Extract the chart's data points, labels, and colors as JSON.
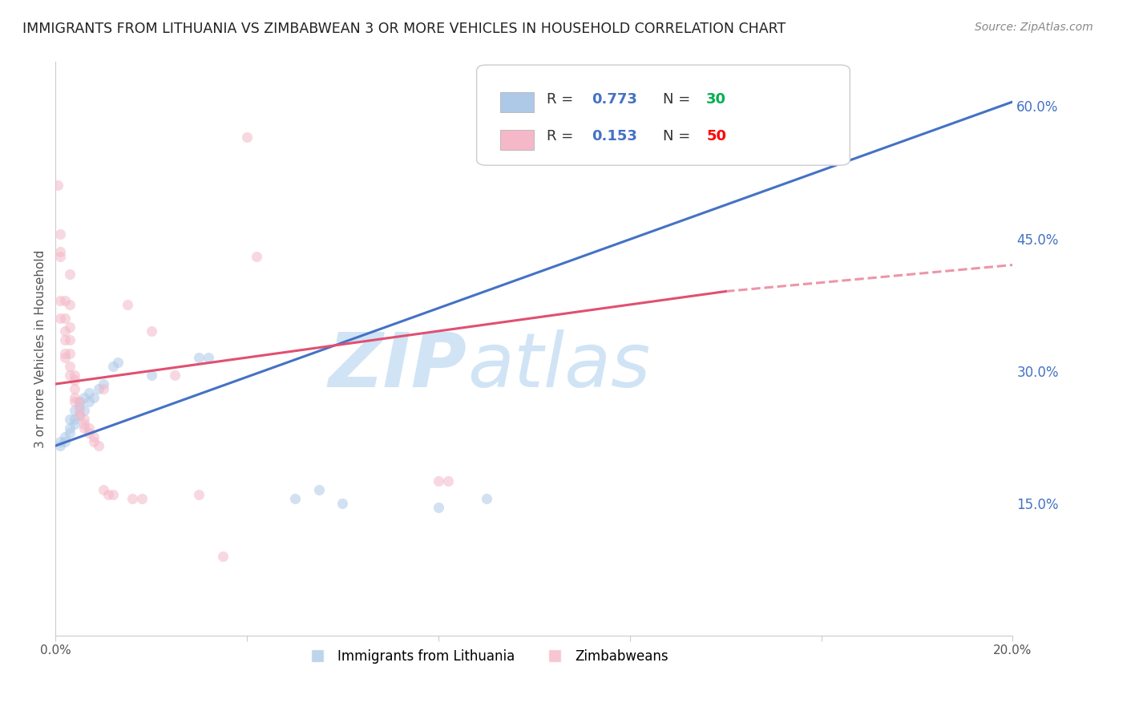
{
  "title": "IMMIGRANTS FROM LITHUANIA VS ZIMBABWEAN 3 OR MORE VEHICLES IN HOUSEHOLD CORRELATION CHART",
  "source": "Source: ZipAtlas.com",
  "ylabel": "3 or more Vehicles in Household",
  "legend_blue_label": "Immigrants from Lithuania",
  "legend_pink_label": "Zimbabweans",
  "legend_blue_R": "0.773",
  "legend_blue_N": "30",
  "legend_pink_R": "0.153",
  "legend_pink_N": "50",
  "xlim": [
    0.0,
    0.2
  ],
  "ylim": [
    0.0,
    0.65
  ],
  "yticks_right": [
    0.15,
    0.3,
    0.45,
    0.6
  ],
  "ytick_right_labels": [
    "15.0%",
    "30.0%",
    "45.0%",
    "60.0%"
  ],
  "xticks": [
    0.0,
    0.04,
    0.08,
    0.12,
    0.16,
    0.2
  ],
  "xtick_labels": [
    "0.0%",
    "",
    "",
    "",
    "",
    "20.0%"
  ],
  "background_color": "#ffffff",
  "blue_color": "#aec9e8",
  "pink_color": "#f4b8c8",
  "blue_line_color": "#4472c4",
  "pink_line_color": "#e05070",
  "watermark_color": "#d0e4f5",
  "right_axis_color": "#4472c4",
  "legend_text_color": "#333333",
  "legend_value_color": "#4472c4",
  "legend_n_blue_color": "#00b050",
  "legend_n_pink_color": "#ff0000",
  "blue_scatter": [
    [
      0.001,
      0.22
    ],
    [
      0.001,
      0.215
    ],
    [
      0.002,
      0.225
    ],
    [
      0.002,
      0.22
    ],
    [
      0.003,
      0.235
    ],
    [
      0.003,
      0.23
    ],
    [
      0.003,
      0.245
    ],
    [
      0.004,
      0.245
    ],
    [
      0.004,
      0.24
    ],
    [
      0.004,
      0.255
    ],
    [
      0.005,
      0.25
    ],
    [
      0.005,
      0.265
    ],
    [
      0.005,
      0.26
    ],
    [
      0.006,
      0.255
    ],
    [
      0.006,
      0.27
    ],
    [
      0.007,
      0.265
    ],
    [
      0.007,
      0.275
    ],
    [
      0.008,
      0.27
    ],
    [
      0.009,
      0.28
    ],
    [
      0.01,
      0.285
    ],
    [
      0.012,
      0.305
    ],
    [
      0.013,
      0.31
    ],
    [
      0.02,
      0.295
    ],
    [
      0.03,
      0.315
    ],
    [
      0.032,
      0.315
    ],
    [
      0.05,
      0.155
    ],
    [
      0.055,
      0.165
    ],
    [
      0.06,
      0.15
    ],
    [
      0.08,
      0.145
    ],
    [
      0.09,
      0.155
    ]
  ],
  "pink_scatter": [
    [
      0.0005,
      0.51
    ],
    [
      0.001,
      0.435
    ],
    [
      0.001,
      0.43
    ],
    [
      0.001,
      0.38
    ],
    [
      0.001,
      0.36
    ],
    [
      0.002,
      0.38
    ],
    [
      0.002,
      0.36
    ],
    [
      0.002,
      0.345
    ],
    [
      0.002,
      0.335
    ],
    [
      0.002,
      0.32
    ],
    [
      0.002,
      0.315
    ],
    [
      0.003,
      0.375
    ],
    [
      0.003,
      0.35
    ],
    [
      0.003,
      0.335
    ],
    [
      0.003,
      0.32
    ],
    [
      0.003,
      0.305
    ],
    [
      0.003,
      0.295
    ],
    [
      0.004,
      0.295
    ],
    [
      0.004,
      0.29
    ],
    [
      0.004,
      0.28
    ],
    [
      0.004,
      0.27
    ],
    [
      0.004,
      0.265
    ],
    [
      0.005,
      0.265
    ],
    [
      0.005,
      0.255
    ],
    [
      0.005,
      0.25
    ],
    [
      0.006,
      0.245
    ],
    [
      0.006,
      0.24
    ],
    [
      0.006,
      0.235
    ],
    [
      0.007,
      0.235
    ],
    [
      0.007,
      0.23
    ],
    [
      0.008,
      0.225
    ],
    [
      0.008,
      0.22
    ],
    [
      0.009,
      0.215
    ],
    [
      0.01,
      0.28
    ],
    [
      0.01,
      0.165
    ],
    [
      0.011,
      0.16
    ],
    [
      0.012,
      0.16
    ],
    [
      0.015,
      0.375
    ],
    [
      0.016,
      0.155
    ],
    [
      0.018,
      0.155
    ],
    [
      0.02,
      0.345
    ],
    [
      0.025,
      0.295
    ],
    [
      0.03,
      0.16
    ],
    [
      0.04,
      0.565
    ],
    [
      0.042,
      0.43
    ],
    [
      0.08,
      0.175
    ],
    [
      0.082,
      0.175
    ],
    [
      0.001,
      0.455
    ],
    [
      0.003,
      0.41
    ],
    [
      0.035,
      0.09
    ]
  ],
  "blue_line": [
    [
      0.0,
      0.215
    ],
    [
      0.2,
      0.605
    ]
  ],
  "pink_line_solid": [
    [
      0.0,
      0.285
    ],
    [
      0.14,
      0.39
    ]
  ],
  "pink_line_dashed": [
    [
      0.14,
      0.39
    ],
    [
      0.2,
      0.42
    ]
  ],
  "grid_color": "#d9d9d9",
  "dot_size": 90,
  "dot_alpha": 0.55
}
